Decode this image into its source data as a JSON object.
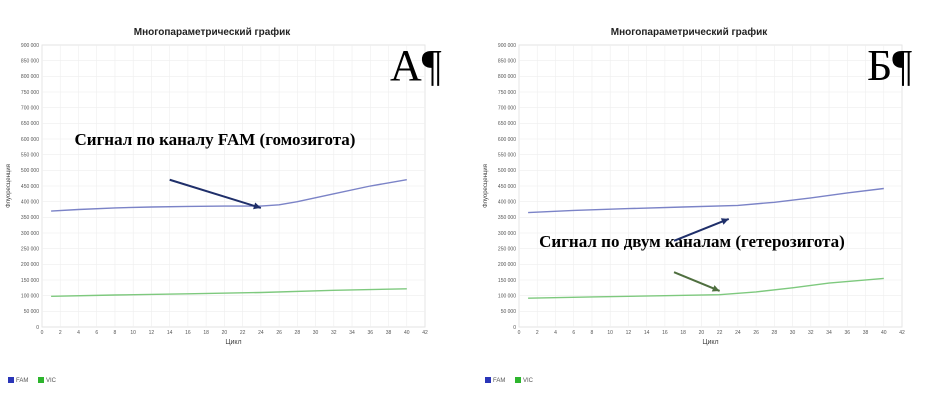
{
  "chart_data": [
    {
      "type": "line",
      "title": "Многопараметрический график",
      "xlabel": "Цикл",
      "ylabel": "Флуоресценция",
      "panel_letter": "А¶",
      "annotations": [
        {
          "text": "Сигнал по каналу FAM (гомозигота)"
        }
      ],
      "arrows": [
        {
          "from": [
            14,
            470000
          ],
          "to": [
            24,
            380000
          ],
          "color": "#1f2f6a"
        }
      ],
      "xlim": [
        0,
        42
      ],
      "ylim": [
        0,
        900000
      ],
      "x_ticks": [
        0,
        2,
        4,
        6,
        8,
        10,
        12,
        14,
        16,
        18,
        20,
        22,
        24,
        26,
        28,
        30,
        32,
        34,
        36,
        38,
        40,
        42
      ],
      "y_ticks": [
        0,
        50000,
        100000,
        150000,
        200000,
        250000,
        300000,
        350000,
        400000,
        450000,
        500000,
        550000,
        600000,
        650000,
        700000,
        750000,
        800000,
        850000,
        900000
      ],
      "y_tick_labels": [
        "0",
        "50 000",
        "100 000",
        "150 000",
        "200 000",
        "250 000",
        "300 000",
        "350 000",
        "400 000",
        "450 000",
        "500 000",
        "550 000",
        "600 000",
        "650 000",
        "700 000",
        "750 000",
        "800 000",
        "850 000",
        "900 000"
      ],
      "grid": true,
      "legend_position": "bottom-left",
      "series": [
        {
          "name": "FAM",
          "color": "#7b83c7",
          "legend_color": "#2a35b8",
          "x": [
            1,
            4,
            8,
            12,
            16,
            20,
            24,
            26,
            28,
            32,
            36,
            40
          ],
          "y": [
            370000,
            375000,
            380000,
            383000,
            385000,
            386000,
            386000,
            390000,
            400000,
            425000,
            450000,
            470000
          ]
        },
        {
          "name": "VIC",
          "color": "#7ec97e",
          "legend_color": "#2db52d",
          "x": [
            1,
            8,
            16,
            24,
            32,
            40
          ],
          "y": [
            98000,
            102000,
            106000,
            110000,
            117000,
            122000
          ]
        }
      ]
    },
    {
      "type": "line",
      "title": "Многопараметрический график",
      "xlabel": "Цикл",
      "ylabel": "Флуоресценция",
      "panel_letter": "Б¶",
      "annotations": [
        {
          "text": "Сигнал по двум каналам (гетерозигота)"
        }
      ],
      "arrows": [
        {
          "from": [
            17,
            275000
          ],
          "to": [
            23,
            345000
          ],
          "color": "#1f2f6a"
        },
        {
          "from": [
            17,
            175000
          ],
          "to": [
            22,
            115000
          ],
          "color": "#4f6f3f"
        }
      ],
      "xlim": [
        0,
        42
      ],
      "ylim": [
        0,
        900000
      ],
      "x_ticks": [
        0,
        2,
        4,
        6,
        8,
        10,
        12,
        14,
        16,
        18,
        20,
        22,
        24,
        26,
        28,
        30,
        32,
        34,
        36,
        38,
        40,
        42
      ],
      "y_ticks": [
        0,
        50000,
        100000,
        150000,
        200000,
        250000,
        300000,
        350000,
        400000,
        450000,
        500000,
        550000,
        600000,
        650000,
        700000,
        750000,
        800000,
        850000,
        900000
      ],
      "y_tick_labels": [
        "0",
        "50 000",
        "100 000",
        "150 000",
        "200 000",
        "250 000",
        "300 000",
        "350 000",
        "400 000",
        "450 000",
        "500 000",
        "550 000",
        "600 000",
        "650 000",
        "700 000",
        "750 000",
        "800 000",
        "850 000",
        "900 000"
      ],
      "grid": true,
      "legend_position": "bottom-left",
      "series": [
        {
          "name": "FAM",
          "color": "#7b83c7",
          "legend_color": "#2a35b8",
          "x": [
            1,
            6,
            12,
            18,
            24,
            28,
            32,
            36,
            40
          ],
          "y": [
            365000,
            372000,
            378000,
            383000,
            388000,
            398000,
            412000,
            428000,
            442000
          ]
        },
        {
          "name": "VIC",
          "color": "#7ec97e",
          "legend_color": "#2db52d",
          "x": [
            1,
            8,
            16,
            22,
            26,
            30,
            34,
            40
          ],
          "y": [
            92000,
            96000,
            100000,
            103000,
            112000,
            125000,
            140000,
            155000
          ]
        }
      ]
    }
  ]
}
